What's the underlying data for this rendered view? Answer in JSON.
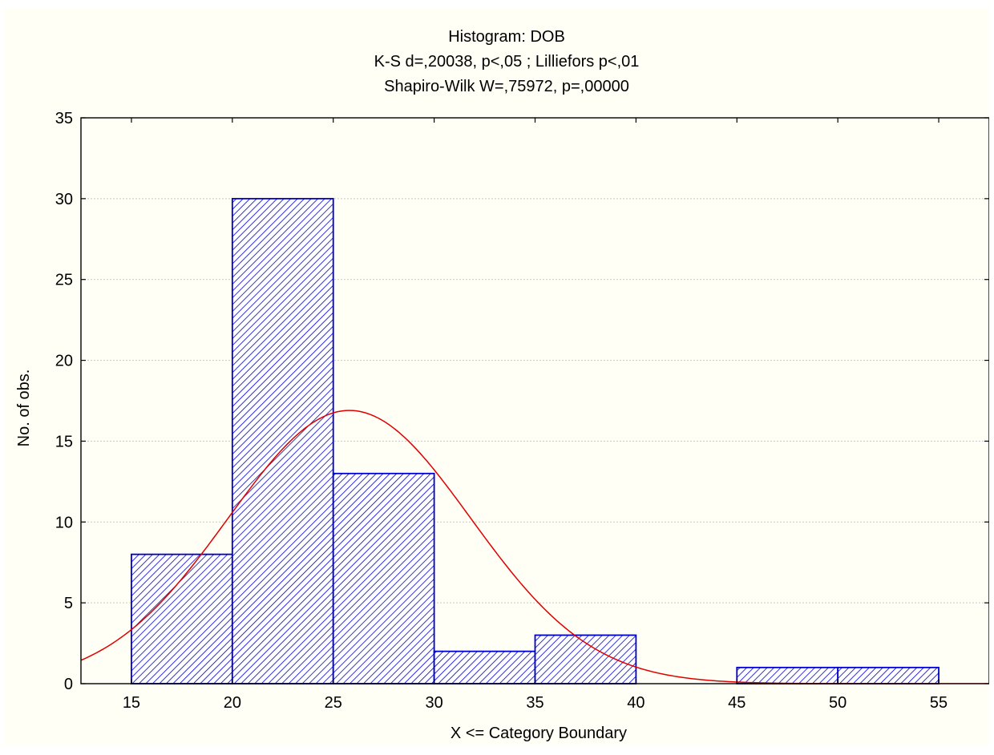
{
  "chart_data": {
    "type": "bar",
    "title": "Histogram: DOB",
    "subtitle_lines": [
      "K-S d=,20038, p<,05 ; Lilliefors p<,01",
      "Shapiro-Wilk W=,75972, p=,00000"
    ],
    "xlabel": "X <= Category Boundary",
    "ylabel": "No. of obs.",
    "xlim": [
      12.5,
      57.5
    ],
    "ylim": [
      0,
      35
    ],
    "x_ticks": [
      15,
      20,
      25,
      30,
      35,
      40,
      45,
      50,
      55
    ],
    "y_ticks": [
      0,
      5,
      10,
      15,
      20,
      25,
      30,
      35
    ],
    "bins": [
      {
        "from": 15,
        "to": 20,
        "count": 8
      },
      {
        "from": 20,
        "to": 25,
        "count": 30
      },
      {
        "from": 25,
        "to": 30,
        "count": 13
      },
      {
        "from": 30,
        "to": 35,
        "count": 2
      },
      {
        "from": 35,
        "to": 40,
        "count": 3
      },
      {
        "from": 40,
        "to": 45,
        "count": 0
      },
      {
        "from": 45,
        "to": 50,
        "count": 1
      },
      {
        "from": 50,
        "to": 55,
        "count": 1
      }
    ],
    "normal_curve": {
      "mean": 25.8,
      "sd": 6.0,
      "peak": 16.9
    },
    "grid": true,
    "colors": {
      "bar_edge": "#0000cc",
      "bar_hatch": "#0000cc",
      "bar_fill": "#ffffff",
      "curve": "#e00000",
      "grid": "#c8c8c8",
      "background": "#fffff5"
    }
  }
}
